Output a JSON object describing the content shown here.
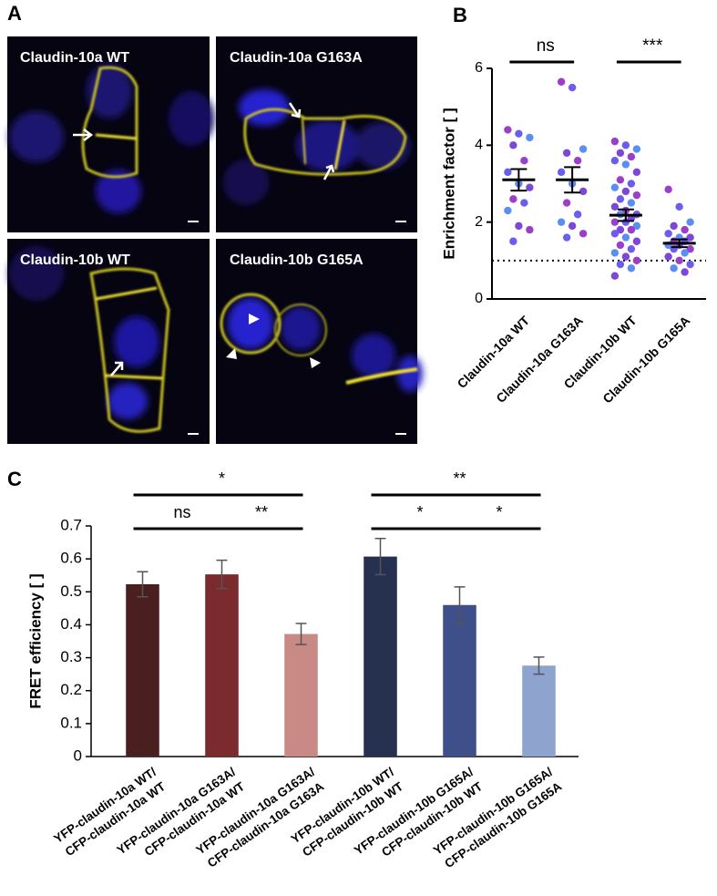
{
  "panel_labels": [
    "A",
    "B",
    "C"
  ],
  "images": [
    {
      "title": "Claudin-10a WT"
    },
    {
      "title": "Claudin-10a G163A"
    },
    {
      "title": "Claudin-10b WT"
    },
    {
      "title": "Claudin-10b G165A"
    }
  ],
  "chart_data": [
    {
      "type": "dot",
      "y_label": "Enrichment factor [ ]",
      "categories": [
        "Claudin-10a WT",
        "Claudin-10a G163A",
        "Claudin-10b WT",
        "Claudin-10b G165A"
      ],
      "points": [
        [
          4.4,
          4.3,
          4.2,
          4.0,
          3.6,
          3.3,
          3.0,
          2.9,
          2.6,
          2.5,
          2.3,
          1.9,
          1.8,
          1.5
        ],
        [
          5.65,
          5.5,
          3.9,
          3.8,
          3.6,
          3.3,
          3.0,
          2.8,
          2.5,
          2.2,
          2.0,
          1.9,
          1.7,
          1.6
        ],
        [
          4.1,
          4.0,
          3.9,
          3.8,
          3.7,
          3.6,
          3.5,
          3.3,
          3.1,
          3.0,
          2.9,
          2.8,
          2.7,
          2.6,
          2.5,
          2.4,
          2.3,
          2.2,
          2.2,
          2.1,
          2.0,
          2.0,
          1.9,
          1.8,
          1.8,
          1.7,
          1.6,
          1.5,
          1.4,
          1.3,
          1.2,
          1.1,
          1.0,
          0.9,
          0.8,
          0.6
        ],
        [
          2.85,
          2.4,
          2.0,
          1.9,
          1.8,
          1.7,
          1.6,
          1.6,
          1.5,
          1.5,
          1.4,
          1.4,
          1.3,
          1.3,
          1.2,
          1.1,
          1.0,
          0.9,
          0.8,
          0.7
        ]
      ],
      "means": [
        3.1,
        3.1,
        2.18,
        1.45
      ],
      "errors": [
        0.28,
        0.33,
        0.15,
        0.1
      ],
      "point_colors": [
        "#9b3fc9",
        "#6c5cf0",
        "#5a8ef0",
        "#7d47d8"
      ],
      "reference_line": 1,
      "ylim": [
        0,
        6
      ],
      "yticks": [
        0,
        2,
        4,
        6
      ],
      "comparisons": [
        {
          "from": 0,
          "to": 1,
          "label": "ns"
        },
        {
          "from": 2,
          "to": 3,
          "label": "***"
        }
      ]
    },
    {
      "type": "bar",
      "y_label": "FRET efficiency [ ]",
      "categories": [
        [
          "YFP-claudin-10a WT/",
          "CFP-claudin-10a WT"
        ],
        [
          "YFP-claudin-10a G163A/",
          "CFP-claudin-10a WT"
        ],
        [
          "YFP-claudin-10a G163A/",
          "CFP-claudin-10a G163A"
        ],
        [
          "YFP-claudin-10b WT/",
          "CFP-claudin-10b WT"
        ],
        [
          "YFP-claudin-10b G165A/",
          "CFP-claudin-10b WT"
        ],
        [
          "YFP-claudin-10b G165A/",
          "CFP-claudin-10b G165A"
        ]
      ],
      "values": [
        0.523,
        0.553,
        0.372,
        0.607,
        0.46,
        0.276
      ],
      "errors": [
        0.038,
        0.043,
        0.032,
        0.055,
        0.055,
        0.026
      ],
      "colors": [
        "#4a1f20",
        "#7b2a2e",
        "#c98985",
        "#26304f",
        "#3f4f8a",
        "#8fa3cf"
      ],
      "ylim": [
        0,
        0.7
      ],
      "yticks": [
        0,
        0.1,
        0.2,
        0.3,
        0.4,
        0.5,
        0.6,
        0.7
      ],
      "comparisons": [
        {
          "from": 0,
          "to": 2,
          "label": "*"
        },
        {
          "from": 0,
          "to": 1,
          "label": "ns"
        },
        {
          "from": 1,
          "to": 2,
          "label": "**"
        },
        {
          "from": 3,
          "to": 5,
          "label": "**"
        },
        {
          "from": 3,
          "to": 4,
          "label": "*"
        },
        {
          "from": 4,
          "to": 5,
          "label": "*"
        }
      ]
    }
  ]
}
